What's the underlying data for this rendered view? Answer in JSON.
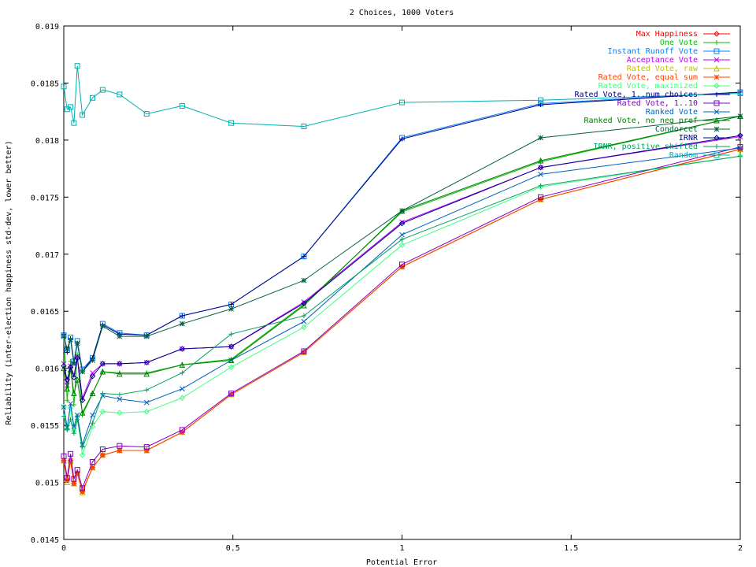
{
  "chart_data": {
    "type": "line",
    "title": "2 Choices, 1000 Voters",
    "xlabel": "Potential Error",
    "ylabel": "Reliability (inter-election happiness std-dev, lower better)",
    "xlim": [
      0,
      2
    ],
    "ylim": [
      0.0145,
      0.019
    ],
    "xticks": [
      0,
      0.5,
      1,
      1.5,
      2
    ],
    "xtick_labels": [
      "0",
      "0.5",
      "1",
      "1.5",
      "2"
    ],
    "yticks": [
      0.0145,
      0.015,
      0.0155,
      0.016,
      0.0165,
      0.017,
      0.0175,
      0.018,
      0.0185,
      0.019
    ],
    "ytick_labels": [
      "0.0145",
      "0.015",
      "0.0155",
      "0.016",
      "0.0165",
      "0.017",
      "0.0175",
      "0.018",
      "0.0185",
      "0.019"
    ],
    "grid": false,
    "legend_position": "top-right",
    "x": [
      0,
      0.01,
      0.02,
      0.03,
      0.04,
      0.055,
      0.085,
      0.115,
      0.165,
      0.245,
      0.35,
      0.495,
      0.71,
      1.0,
      1.41,
      2.0
    ],
    "series": [
      {
        "name": "Max Happiness",
        "color": "#ff0000",
        "marker": "diamond",
        "values": [
          0.01519,
          0.01502,
          0.01519,
          0.01499,
          0.01508,
          0.01492,
          0.01513,
          0.01524,
          0.01528,
          0.01528,
          0.01544,
          0.01577,
          0.01614,
          0.01689,
          0.01748,
          0.01792
        ]
      },
      {
        "name": "One Vote",
        "color": "#00c000",
        "marker": "plus",
        "values": [
          0.01628,
          0.01572,
          0.01606,
          0.01568,
          0.01612,
          0.01559,
          0.01578,
          0.01597,
          0.01596,
          0.01596,
          0.01603,
          0.01608,
          0.01656,
          0.01737,
          0.01781,
          0.01821
        ]
      },
      {
        "name": "Instant Runoff Vote",
        "color": "#0080ff",
        "marker": "square",
        "values": [
          0.01629,
          0.01616,
          0.01627,
          0.01606,
          0.01624,
          0.01599,
          0.01609,
          0.01639,
          0.01631,
          0.01629,
          0.01646,
          0.01656,
          0.01698,
          0.01802,
          0.01832,
          0.01842
        ]
      },
      {
        "name": "Acceptance Vote",
        "color": "#c000ff",
        "marker": "x",
        "values": [
          0.01604,
          0.01585,
          0.01602,
          0.01594,
          0.0161,
          0.01574,
          0.01596,
          0.01604,
          0.01604,
          0.01605,
          0.01617,
          0.01619,
          0.01658,
          0.01728,
          0.01776,
          0.01803
        ]
      },
      {
        "name": "Rated Vote, raw",
        "color": "#c0c000",
        "marker": "triangle",
        "values": [
          0.01519,
          0.015,
          0.01519,
          0.01499,
          0.01508,
          0.01491,
          0.01513,
          0.01524,
          0.01528,
          0.01528,
          0.01544,
          0.01577,
          0.01614,
          0.01689,
          0.01748,
          0.01792
        ]
      },
      {
        "name": "Rated Vote, equal sum",
        "color": "#ff4000",
        "marker": "asterisk",
        "values": [
          0.01519,
          0.01502,
          0.01519,
          0.01499,
          0.01508,
          0.01492,
          0.01513,
          0.01524,
          0.01528,
          0.01528,
          0.01544,
          0.01577,
          0.01614,
          0.01689,
          0.01748,
          0.01792
        ]
      },
      {
        "name": "Rated Vote, maximized",
        "color": "#40ff80",
        "marker": "diamond",
        "values": [
          0.01566,
          0.01547,
          0.01565,
          0.01545,
          0.01558,
          0.01524,
          0.01549,
          0.01562,
          0.01561,
          0.01562,
          0.01574,
          0.01601,
          0.01636,
          0.01708,
          0.01759,
          0.01786
        ]
      },
      {
        "name": "Rated Vote, 1..num choices",
        "color": "#000080",
        "marker": "plus",
        "values": [
          0.0163,
          0.01614,
          0.01626,
          0.01605,
          0.01622,
          0.01597,
          0.01609,
          0.01638,
          0.0163,
          0.01629,
          0.01646,
          0.01656,
          0.01698,
          0.01801,
          0.01831,
          0.01842
        ]
      },
      {
        "name": "Rated Vote, 1..10",
        "color": "#8000c0",
        "marker": "square",
        "values": [
          0.01523,
          0.01504,
          0.01525,
          0.01503,
          0.01511,
          0.01495,
          0.01518,
          0.01529,
          0.01532,
          0.01531,
          0.01546,
          0.01578,
          0.01615,
          0.01691,
          0.0175,
          0.01794
        ]
      },
      {
        "name": "Ranked Vote",
        "color": "#0060c0",
        "marker": "x",
        "values": [
          0.01566,
          0.01548,
          0.01569,
          0.01549,
          0.01559,
          0.01533,
          0.01559,
          0.01576,
          0.01573,
          0.0157,
          0.01582,
          0.01607,
          0.01641,
          0.01717,
          0.0177,
          0.01793
        ]
      },
      {
        "name": "Ranked Vote, no neg pref",
        "color": "#008000",
        "marker": "triangle",
        "values": [
          0.016,
          0.01582,
          0.01599,
          0.01578,
          0.0159,
          0.01561,
          0.01578,
          0.01597,
          0.01595,
          0.01595,
          0.01603,
          0.01607,
          0.01655,
          0.01738,
          0.01782,
          0.01821
        ]
      },
      {
        "name": "Condorcet",
        "color": "#006040",
        "marker": "asterisk",
        "values": [
          0.01628,
          0.01617,
          0.01625,
          0.01604,
          0.01622,
          0.01597,
          0.01607,
          0.01637,
          0.01628,
          0.01628,
          0.01639,
          0.01652,
          0.01677,
          0.01738,
          0.01802,
          0.01821
        ]
      },
      {
        "name": "IRNR",
        "color": "#00008b",
        "marker": "diamond",
        "values": [
          0.01602,
          0.0159,
          0.01601,
          0.01592,
          0.01609,
          0.01572,
          0.01593,
          0.01604,
          0.01604,
          0.01605,
          0.01617,
          0.01619,
          0.01657,
          0.01727,
          0.01776,
          0.01804
        ]
      },
      {
        "name": "IRNR, positive shifted",
        "color": "#00a060",
        "marker": "plus",
        "values": [
          0.01558,
          0.01546,
          0.01555,
          0.01543,
          0.01555,
          0.01531,
          0.01552,
          0.01578,
          0.01577,
          0.01581,
          0.01596,
          0.0163,
          0.01646,
          0.01713,
          0.0176,
          0.01786
        ]
      },
      {
        "name": "Random",
        "color": "#00b0b0",
        "marker": "square",
        "values": [
          0.01847,
          0.01827,
          0.01829,
          0.01815,
          0.01865,
          0.01822,
          0.01837,
          0.01844,
          0.0184,
          0.01823,
          0.0183,
          0.01815,
          0.01812,
          0.01833,
          0.01835,
          0.01841
        ]
      }
    ]
  }
}
